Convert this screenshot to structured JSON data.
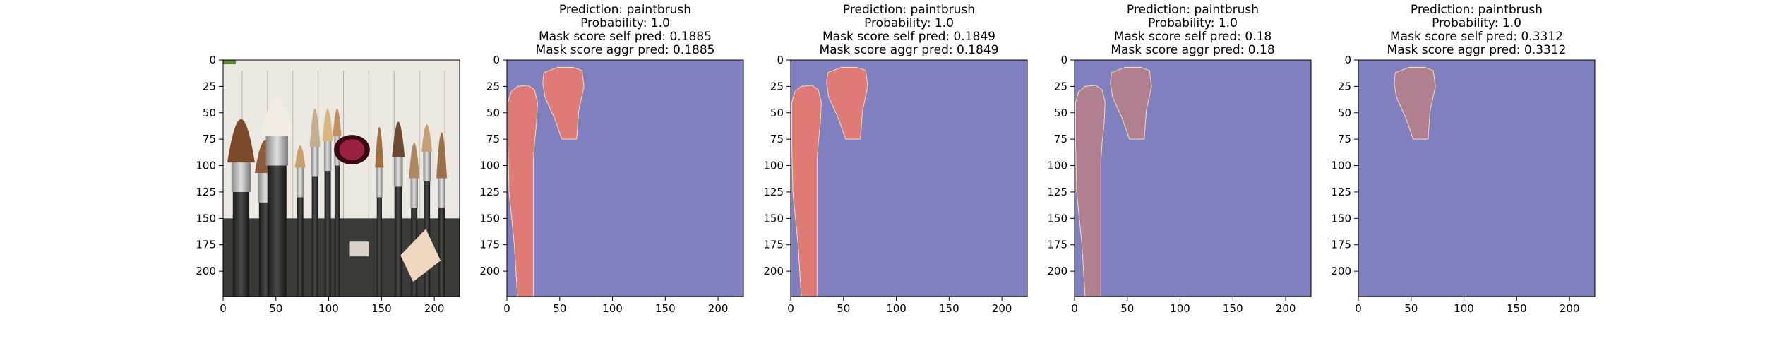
{
  "chart_data": [
    {
      "type": "image",
      "image_kind": "photo-makeup-brushes",
      "title": [],
      "xlim": [
        0,
        224
      ],
      "ylim": [
        224,
        0
      ],
      "xticks": [
        0,
        50,
        100,
        150,
        200
      ],
      "yticks": [
        0,
        25,
        50,
        75,
        100,
        125,
        150,
        175,
        200
      ],
      "colors": {
        "background": "#f0eee8"
      }
    },
    {
      "type": "heatmap",
      "image_kind": "mask-overlay",
      "title": [
        "Prediction: paintbrush",
        "Probability: 1.0",
        "Mask score self pred: 0.1885",
        "Mask score aggr pred: 0.1885"
      ],
      "xlim": [
        0,
        224
      ],
      "ylim": [
        224,
        0
      ],
      "xticks": [
        0,
        50,
        100,
        150,
        200
      ],
      "yticks": [
        0,
        25,
        50,
        75,
        100,
        125,
        150,
        175,
        200
      ],
      "colors": {
        "background": "#8080c0",
        "mask": "#e07a76"
      },
      "mask_regions": [
        {
          "points": [
            [
              35,
              12
            ],
            [
              48,
              7
            ],
            [
              63,
              7
            ],
            [
              71,
              10
            ],
            [
              73,
              25
            ],
            [
              68,
              48
            ],
            [
              66,
              75
            ],
            [
              52,
              75
            ],
            [
              45,
              55
            ],
            [
              36,
              35
            ],
            [
              34,
              22
            ]
          ]
        },
        {
          "points": [
            [
              1,
              40
            ],
            [
              4,
              30
            ],
            [
              10,
              25
            ],
            [
              20,
              24
            ],
            [
              26,
              28
            ],
            [
              29,
              40
            ],
            [
              28,
              60
            ],
            [
              26,
              80
            ],
            [
              25,
              95
            ],
            [
              25,
              224
            ],
            [
              10,
              224
            ],
            [
              7,
              175
            ],
            [
              2,
              125
            ],
            [
              1,
              80
            ]
          ]
        }
      ]
    },
    {
      "type": "heatmap",
      "image_kind": "mask-overlay",
      "title": [
        "Prediction: paintbrush",
        "Probability: 1.0",
        "Mask score self pred: 0.1849",
        "Mask score aggr pred: 0.1849"
      ],
      "xlim": [
        0,
        224
      ],
      "ylim": [
        224,
        0
      ],
      "xticks": [
        0,
        50,
        100,
        150,
        200
      ],
      "yticks": [
        0,
        25,
        50,
        75,
        100,
        125,
        150,
        175,
        200
      ],
      "colors": {
        "background": "#8080c0",
        "mask": "#e07a76"
      },
      "mask_regions": [
        {
          "points": [
            [
              35,
              12
            ],
            [
              48,
              7
            ],
            [
              63,
              7
            ],
            [
              71,
              10
            ],
            [
              73,
              25
            ],
            [
              68,
              48
            ],
            [
              66,
              75
            ],
            [
              52,
              75
            ],
            [
              45,
              55
            ],
            [
              36,
              35
            ],
            [
              34,
              22
            ]
          ]
        },
        {
          "points": [
            [
              1,
              40
            ],
            [
              4,
              30
            ],
            [
              10,
              25
            ],
            [
              20,
              24
            ],
            [
              26,
              28
            ],
            [
              29,
              40
            ],
            [
              28,
              60
            ],
            [
              26,
              80
            ],
            [
              25,
              95
            ],
            [
              25,
              224
            ],
            [
              10,
              224
            ],
            [
              7,
              175
            ],
            [
              2,
              125
            ],
            [
              1,
              80
            ]
          ]
        }
      ]
    },
    {
      "type": "heatmap",
      "image_kind": "mask-overlay",
      "title": [
        "Prediction: paintbrush",
        "Probability: 1.0",
        "Mask score self pred: 0.18",
        "Mask score aggr pred: 0.18"
      ],
      "xlim": [
        0,
        224
      ],
      "ylim": [
        224,
        0
      ],
      "xticks": [
        0,
        50,
        100,
        150,
        200
      ],
      "yticks": [
        0,
        25,
        50,
        75,
        100,
        125,
        150,
        175,
        200
      ],
      "colors": {
        "background": "#8080c0",
        "mask": "#b08090"
      },
      "mask_regions": [
        {
          "points": [
            [
              35,
              12
            ],
            [
              48,
              7
            ],
            [
              63,
              7
            ],
            [
              71,
              10
            ],
            [
              73,
              25
            ],
            [
              68,
              48
            ],
            [
              66,
              75
            ],
            [
              52,
              75
            ],
            [
              45,
              55
            ],
            [
              36,
              35
            ],
            [
              34,
              22
            ]
          ]
        },
        {
          "points": [
            [
              1,
              40
            ],
            [
              4,
              30
            ],
            [
              10,
              25
            ],
            [
              20,
              24
            ],
            [
              26,
              28
            ],
            [
              29,
              40
            ],
            [
              28,
              60
            ],
            [
              26,
              80
            ],
            [
              25,
              95
            ],
            [
              25,
              224
            ],
            [
              10,
              224
            ],
            [
              7,
              175
            ],
            [
              2,
              125
            ],
            [
              1,
              80
            ]
          ]
        }
      ]
    },
    {
      "type": "heatmap",
      "image_kind": "mask-overlay",
      "title": [
        "Prediction: paintbrush",
        "Probability: 1.0",
        "Mask score self pred: 0.3312",
        "Mask score aggr pred: 0.3312"
      ],
      "xlim": [
        0,
        224
      ],
      "ylim": [
        224,
        0
      ],
      "xticks": [
        0,
        50,
        100,
        150,
        200
      ],
      "yticks": [
        0,
        25,
        50,
        75,
        100,
        125,
        150,
        175,
        200
      ],
      "colors": {
        "background": "#8080c0",
        "mask": "#b08090"
      },
      "mask_regions": [
        {
          "points": [
            [
              35,
              12
            ],
            [
              48,
              7
            ],
            [
              63,
              7
            ],
            [
              71,
              10
            ],
            [
              73,
              25
            ],
            [
              68,
              48
            ],
            [
              66,
              75
            ],
            [
              52,
              75
            ],
            [
              45,
              55
            ],
            [
              36,
              35
            ],
            [
              34,
              22
            ]
          ]
        }
      ]
    }
  ]
}
